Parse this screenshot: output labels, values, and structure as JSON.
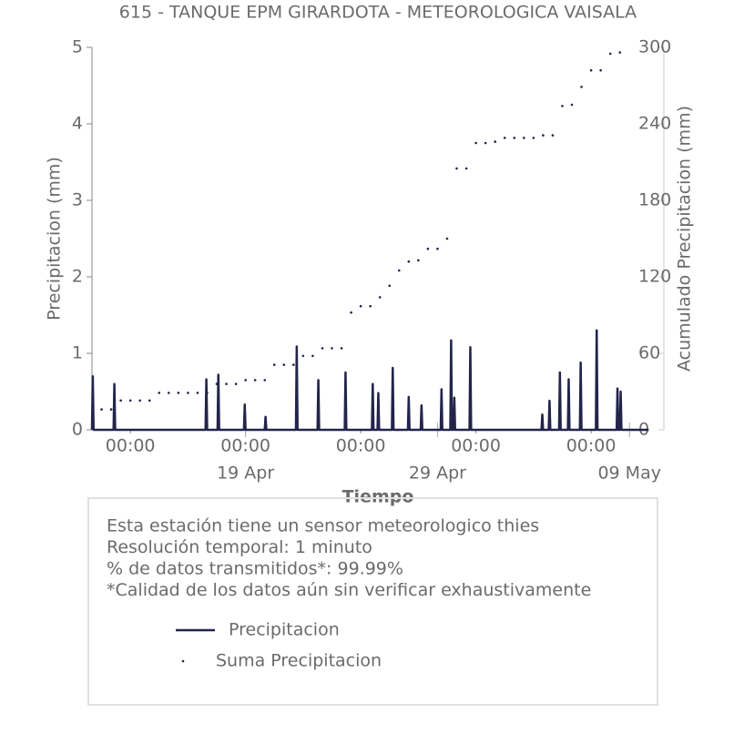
{
  "chart_data": {
    "type": "line",
    "title": "615 - TANQUE EPM GIRARDOTA - METEOROLOGICA VAISALA",
    "xlabel": "Tiempo",
    "ylabel": "Precipitacion (mm)",
    "y2label": "Acumulado Precipitacion (mm)",
    "xlim": [
      "04-11 00:00",
      "05-10 19:00"
    ],
    "xticks": [
      {
        "value": "04-19 00:00",
        "label": "19 Apr"
      },
      {
        "value": "04-29 00:00",
        "label": "29 Apr"
      },
      {
        "value": "05-09 00:00",
        "label": "09 May"
      }
    ],
    "xminorticks": [
      {
        "value": "04-13 00:00",
        "label": "00:00"
      },
      {
        "value": "04-19 00:00",
        "label": "00:00"
      },
      {
        "value": "04-25 00:00",
        "label": "00:00"
      },
      {
        "value": "05-01 00:00",
        "label": "00:00"
      },
      {
        "value": "05-07 00:00",
        "label": "00:00"
      }
    ],
    "ylim": [
      0,
      5
    ],
    "yticks": [
      0,
      1,
      2,
      3,
      4,
      5
    ],
    "y2lim": [
      0,
      300
    ],
    "y2ticks": [
      0,
      60,
      120,
      180,
      240,
      300
    ],
    "annotations": [
      "Esta estación tiene un sensor meteorologico thies",
      "Resolución temporal: 1 minuto",
      "% de datos transmitidos*: 99.99%",
      "*Calidad de los datos aún sin verificar exhaustivamente"
    ],
    "series": [
      {
        "name": "Precipitacion",
        "color": "#23244a",
        "marker": "line",
        "x": [
          "04-11 00:00",
          "04-11 01:00",
          "04-11 02:00",
          "04-12 03:00",
          "04-12 04:00",
          "04-12 05:00",
          "04-16 22:00",
          "04-16 23:00",
          "04-17 00:00",
          "04-17 13:00",
          "04-17 14:00",
          "04-17 15:00",
          "04-18 22:00",
          "04-18 23:00",
          "04-19 00:00",
          "04-20 00:00",
          "04-20 01:00",
          "04-20 02:00",
          "04-21 15:00",
          "04-21 16:00",
          "04-21 17:00",
          "04-22 18:00",
          "04-22 19:00",
          "04-22 20:00",
          "04-24 04:00",
          "04-24 05:00",
          "04-24 06:00",
          "04-25 14:00",
          "04-25 15:00",
          "04-25 16:00",
          "04-25 21:00",
          "04-25 22:00",
          "04-25 23:00",
          "04-26 15:00",
          "04-26 16:00",
          "04-26 17:00",
          "04-27 11:00",
          "04-27 12:00",
          "04-27 13:00",
          "04-28 03:00",
          "04-28 04:00",
          "04-28 05:00",
          "04-29 04:00",
          "04-29 05:00",
          "04-29 06:00",
          "04-29 16:00",
          "04-29 17:00",
          "04-29 18:00",
          "04-29 20:00",
          "04-29 21:00",
          "04-29 22:00",
          "04-30 16:00",
          "04-30 17:00",
          "04-30 18:00",
          "05-04 10:00",
          "05-04 11:00",
          "05-04 12:00",
          "05-04 19:00",
          "05-04 20:00",
          "05-04 21:00",
          "05-05 08:00",
          "05-05 09:00",
          "05-05 10:00",
          "05-05 19:00",
          "05-05 20:00",
          "05-05 21:00",
          "05-06 10:00",
          "05-06 11:00",
          "05-06 12:00",
          "05-07 06:00",
          "05-07 07:00",
          "05-07 08:00",
          "05-08 08:00",
          "05-08 09:00",
          "05-08 10:00",
          "05-08 12:00",
          "05-08 13:00",
          "05-08 14:00",
          "05-10 00:00"
        ],
        "values": [
          0,
          0.7,
          0,
          0,
          0.6,
          0,
          0,
          0.66,
          0,
          0,
          0.72,
          0,
          0,
          0.33,
          0,
          0,
          0.17,
          0,
          0,
          1.09,
          0,
          0,
          0.65,
          0,
          0,
          0.75,
          0,
          0,
          0.6,
          0,
          0,
          0.48,
          0,
          0,
          0.81,
          0,
          0,
          0.43,
          0,
          0,
          0.32,
          0,
          0,
          0.53,
          0,
          0,
          1.17,
          0,
          0,
          0.42,
          0,
          0,
          1.08,
          0,
          0,
          0.2,
          0,
          0,
          0.38,
          0,
          0,
          0.75,
          0,
          0,
          0.66,
          0,
          0,
          0.88,
          0,
          0,
          1.3,
          0,
          0,
          0.54,
          0,
          0,
          0.5,
          0,
          0
        ]
      },
      {
        "name": "Suma Precipitacion",
        "color": "#23244a",
        "marker": "dot",
        "axis": "y2",
        "x": [
          "04-11 12:00",
          "04-12 00:00",
          "04-12 12:00",
          "04-13 00:00",
          "04-13 12:00",
          "04-14 00:00",
          "04-14 12:00",
          "04-15 00:00",
          "04-15 12:00",
          "04-16 00:00",
          "04-16 12:00",
          "04-17 00:00",
          "04-17 12:00",
          "04-18 00:00",
          "04-18 12:00",
          "04-19 00:00",
          "04-19 12:00",
          "04-20 00:00",
          "04-20 12:00",
          "04-21 00:00",
          "04-21 12:00",
          "04-22 00:00",
          "04-22 12:00",
          "04-23 00:00",
          "04-23 12:00",
          "04-24 00:00",
          "04-24 12:00",
          "04-25 00:00",
          "04-25 12:00",
          "04-26 00:00",
          "04-26 12:00",
          "04-27 00:00",
          "04-27 12:00",
          "04-28 00:00",
          "04-28 12:00",
          "04-29 00:00",
          "04-29 12:00",
          "04-30 00:00",
          "04-30 12:00",
          "05-01 00:00",
          "05-01 12:00",
          "05-02 00:00",
          "05-02 12:00",
          "05-03 00:00",
          "05-03 12:00",
          "05-04 00:00",
          "05-04 12:00",
          "05-05 00:00",
          "05-05 12:00",
          "05-06 00:00",
          "05-06 12:00",
          "05-07 00:00",
          "05-07 12:00",
          "05-08 00:00",
          "05-08 12:00"
        ],
        "values": [
          16,
          16,
          23,
          23,
          23,
          23,
          29,
          29,
          29,
          29,
          29,
          29,
          36,
          36,
          36,
          39,
          39,
          39,
          51,
          51,
          51,
          58,
          58,
          64,
          64,
          64,
          92,
          97,
          97,
          104,
          113,
          125,
          132,
          133,
          142,
          142,
          150,
          205,
          205,
          225,
          225,
          226,
          229,
          229,
          229,
          229,
          231,
          231,
          254,
          255,
          269,
          282,
          282,
          295,
          296
        ]
      }
    ]
  }
}
